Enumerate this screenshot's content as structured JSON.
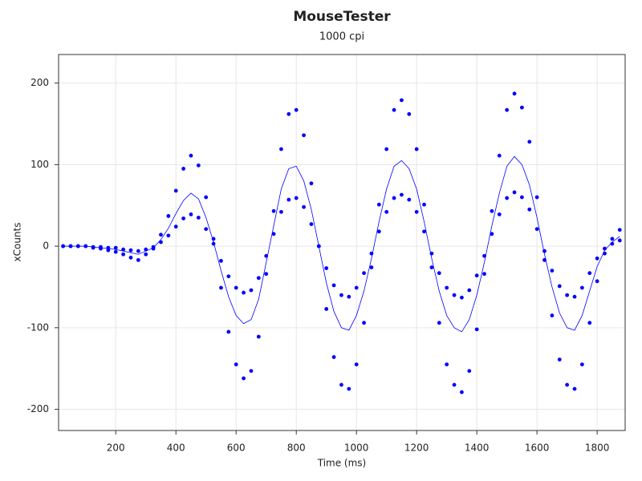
{
  "chart_data": {
    "type": "scatter",
    "title": "MouseTester",
    "subtitle": "1000 cpi",
    "x_label": "Time (ms)",
    "y_label": "xCounts",
    "xlim": [
      10,
      1893
    ],
    "ylim": [
      -226,
      235
    ],
    "xticks": [
      200,
      400,
      600,
      800,
      1000,
      1200,
      1400,
      1600,
      1800
    ],
    "yticks": [
      -200,
      -100,
      0,
      100,
      200
    ],
    "grid": true,
    "x": [
      25,
      50,
      75,
      100,
      125,
      150,
      175,
      200,
      225,
      250,
      275,
      300,
      325,
      350,
      375,
      400,
      425,
      450,
      475,
      500,
      525,
      550,
      575,
      600,
      625,
      650,
      675,
      700,
      725,
      750,
      775,
      800,
      825,
      850,
      875,
      900,
      925,
      950,
      975,
      1000,
      1025,
      1050,
      1075,
      1100,
      1125,
      1150,
      1175,
      1200,
      1225,
      1250,
      1275,
      1300,
      1325,
      1350,
      1375,
      1400,
      1425,
      1450,
      1475,
      1500,
      1525,
      1550,
      1575,
      1600,
      1625,
      1650,
      1675,
      1700,
      1725,
      1750,
      1775,
      1800,
      1825,
      1850,
      1875
    ],
    "series": [
      {
        "mode": "line",
        "color": "#0000ff",
        "values": [
          0,
          0,
          0,
          0,
          -1,
          -2,
          -3,
          -4,
          -6,
          -8,
          -10,
          -6,
          -2,
          8,
          22,
          40,
          56,
          65,
          58,
          35,
          5,
          -30,
          -62,
          -85,
          -95,
          -90,
          -65,
          -20,
          25,
          70,
          95,
          98,
          80,
          45,
          0,
          -45,
          -80,
          -100,
          -103,
          -85,
          -55,
          -15,
          30,
          70,
          98,
          105,
          95,
          70,
          30,
          -15,
          -55,
          -85,
          -100,
          -105,
          -90,
          -60,
          -20,
          25,
          65,
          98,
          110,
          100,
          75,
          35,
          -10,
          -50,
          -82,
          -100,
          -103,
          -85,
          -55,
          -25,
          -5,
          5,
          12
        ]
      },
      {
        "mode": "markers",
        "color": "#0000ff",
        "values": [
          0,
          0,
          0,
          0,
          -1,
          -1,
          -2,
          -2,
          -4,
          -5,
          -6,
          -4,
          -1,
          5,
          13,
          24,
          34,
          39,
          35,
          21,
          3,
          -18,
          -37,
          -51,
          -57,
          -54,
          -39,
          -12,
          15,
          42,
          57,
          59,
          48,
          27,
          0,
          -27,
          -48,
          -60,
          -62,
          -51,
          -33,
          -9,
          18,
          42,
          59,
          63,
          57,
          42,
          18,
          -9,
          -33,
          -51,
          -60,
          -63,
          -54,
          -36,
          -12,
          15,
          39,
          59,
          66,
          60,
          45,
          21,
          -6,
          -30,
          -49,
          -60,
          -62,
          -51,
          -33,
          -15,
          -3,
          3,
          7
        ]
      },
      {
        "mode": "markers",
        "color": "#0000ff",
        "values": [
          0,
          0,
          0,
          0,
          -2,
          -3,
          -5,
          -7,
          -10,
          -14,
          -17,
          -10,
          -3,
          14,
          37,
          68,
          95,
          111,
          99,
          60,
          9,
          -51,
          -105,
          -145,
          -162,
          -153,
          -111,
          -34,
          43,
          119,
          162,
          167,
          136,
          77,
          0,
          -77,
          -136,
          -170,
          -175,
          -145,
          -94,
          -26,
          51,
          119,
          167,
          179,
          162,
          119,
          51,
          -26,
          -94,
          -145,
          -170,
          -179,
          -153,
          -102,
          -34,
          43,
          111,
          167,
          187,
          170,
          128,
          60,
          -17,
          -85,
          -139,
          -170,
          -175,
          -145,
          -94,
          -43,
          -9,
          9,
          20
        ]
      }
    ]
  }
}
